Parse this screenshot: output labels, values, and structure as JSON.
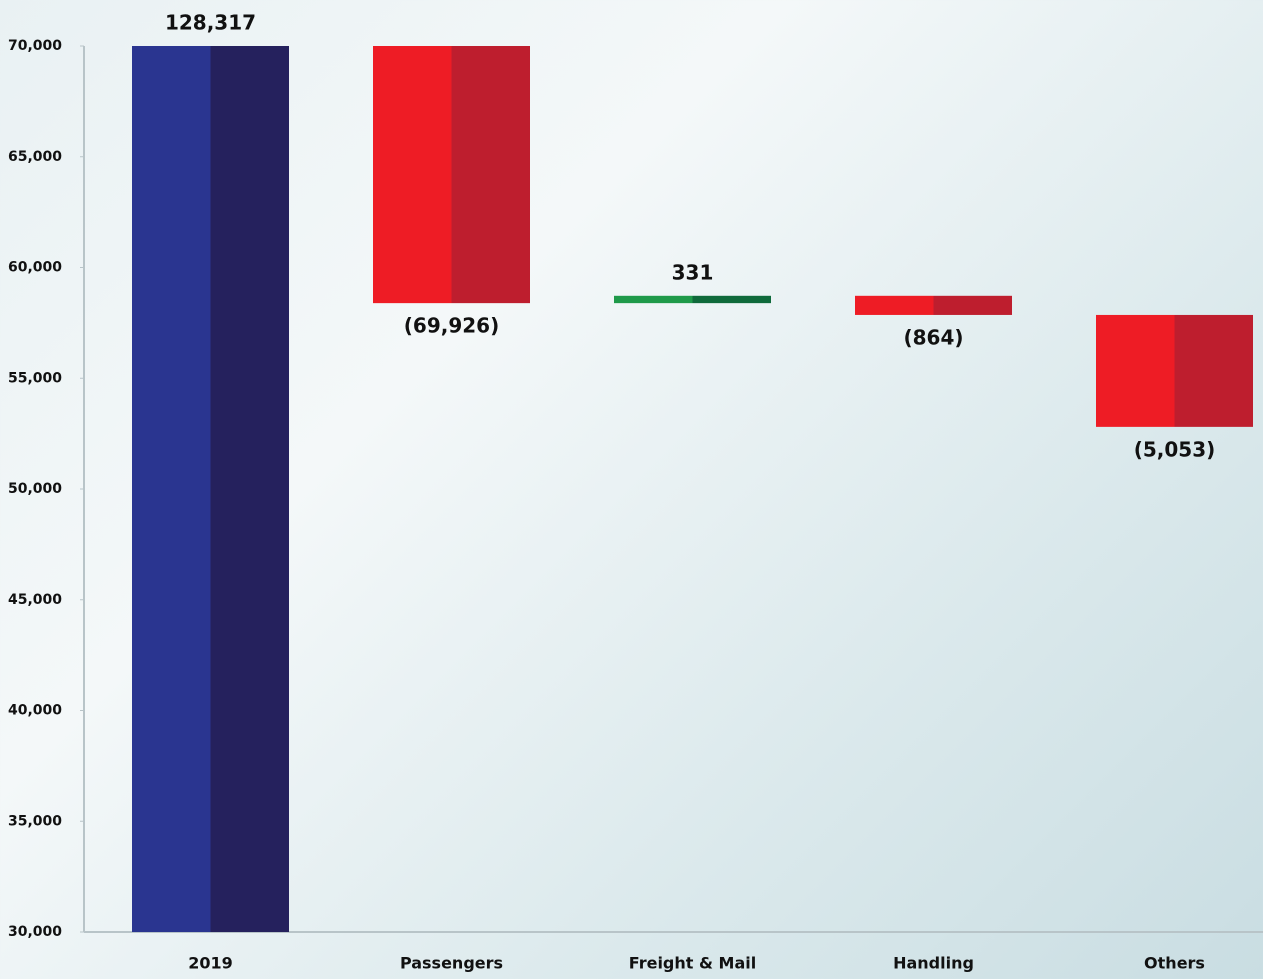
{
  "chart_data": {
    "type": "waterfall",
    "categories": [
      "2019",
      "Passengers",
      "Freight & Mail",
      "Handling",
      "Others"
    ],
    "values": [
      128317,
      -69926,
      331,
      -864,
      -5053
    ],
    "value_labels": [
      "128,317",
      "(69,926)",
      "331",
      "(864)",
      "(5,053)"
    ],
    "measure": [
      "absolute",
      "relative",
      "relative",
      "relative",
      "relative"
    ],
    "colors": {
      "total": [
        "#2a3590",
        "#25215d"
      ],
      "increase": [
        "#1f9a4a",
        "#0f6a3b"
      ],
      "decrease": [
        "#ee1c25",
        "#be1e2e"
      ]
    },
    "ylim": [
      30000,
      70000
    ],
    "yticks": [
      {
        "value": 30000,
        "label": "30,000"
      },
      {
        "value": 35000,
        "label": "35,000"
      },
      {
        "value": 40000,
        "label": "40,000"
      },
      {
        "value": 45000,
        "label": "45,000"
      },
      {
        "value": 50000,
        "label": "50,000"
      },
      {
        "value": 55000,
        "label": "55,000"
      },
      {
        "value": 60000,
        "label": "60,000"
      },
      {
        "value": 65000,
        "label": "65,000"
      },
      {
        "value": 70000,
        "label": "70,000"
      }
    ]
  }
}
